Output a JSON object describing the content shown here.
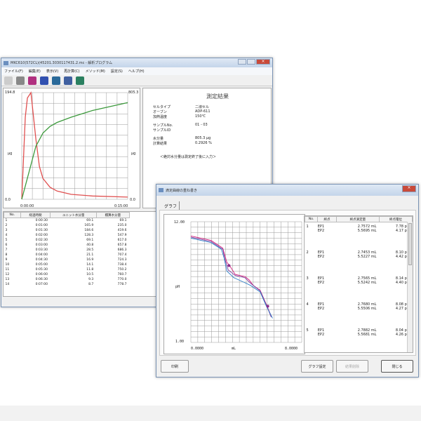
{
  "win1": {
    "title": "MKC610(572CL)(45201.3030117431.2.mc - 解析プログラム",
    "menu": [
      "ファイル(F)",
      "編集(E)",
      "表示(V)",
      "再計算(C)",
      "メソッド(M)",
      "設定(S)",
      "ヘルプ(H)"
    ],
    "chart": {
      "y_left_max": "194.8",
      "y_left_min": "0.0",
      "y_right_max": "805.3",
      "y_right_min": "0.0",
      "y_left_label": "μg",
      "y_right_label": "μg",
      "x_min": "0:00:00",
      "x_max": "0:15:00"
    },
    "result": {
      "title": "測定結果",
      "fields": [
        {
          "k": "セルタイプ",
          "v": "二液セル"
        },
        {
          "k": "オーブン",
          "v": "ADP-611"
        },
        {
          "k": "加熱温度",
          "v": "150℃"
        },
        {
          "k": "サンプルNo.",
          "v": "01 - 03"
        },
        {
          "k": "サンプルID",
          "v": ""
        },
        {
          "k": "水分量",
          "v": "805.3 μg"
        },
        {
          "k": "計算結果",
          "v": "0.2926 %"
        }
      ],
      "note": "＜絶対水分量は測定終了後に入力＞"
    },
    "table": {
      "headers": [
        "No.",
        "経過時間",
        "ユニット水分量",
        "積算水分量"
      ],
      "rows": [
        [
          "1",
          "0:00:30",
          "69.1",
          "69.1"
        ],
        [
          "2",
          "0:01:00",
          "165.9",
          "235.0"
        ],
        [
          "3",
          "0:01:30",
          "184.6",
          "419.6"
        ],
        [
          "4",
          "0:02:00",
          "128.3",
          "547.9"
        ],
        [
          "5",
          "0:02:30",
          "69.1",
          "617.0"
        ],
        [
          "6",
          "0:03:00",
          "40.8",
          "657.8"
        ],
        [
          "7",
          "0:03:30",
          "28.5",
          "686.3"
        ],
        [
          "8",
          "0:04:00",
          "21.1",
          "707.4"
        ],
        [
          "9",
          "0:04:30",
          "16.9",
          "724.3"
        ],
        [
          "10",
          "0:05:00",
          "14.1",
          "738.4"
        ],
        [
          "11",
          "0:05:30",
          "11.8",
          "750.2"
        ],
        [
          "12",
          "0:06:00",
          "10.5",
          "760.7"
        ],
        [
          "13",
          "0:06:30",
          "9.3",
          "770.0"
        ],
        [
          "14",
          "0:07:00",
          "8.7",
          "778.7"
        ]
      ]
    }
  },
  "win2": {
    "title": "滴定曲線の重ね書き",
    "tab": "グラフ",
    "chart": {
      "y_max": "12.00",
      "y_min": "1.00",
      "x_min": "0.0000",
      "x_max": "8.0000",
      "ylabel": "pH",
      "xlabel": "mL"
    },
    "table": {
      "headers": [
        "No.",
        "終点",
        "終点滴定量",
        "終点電位"
      ],
      "rows": [
        {
          "no": "1",
          "ep": [
            "EP1",
            "EP2"
          ],
          "vol": [
            "2.7572 mL",
            "5.5695 mL"
          ],
          "pot": [
            "7.78 pH",
            "4.17 pH"
          ]
        },
        {
          "no": "2",
          "ep": [
            "EP1",
            "EP2"
          ],
          "vol": [
            "2.7453 mL",
            "5.5227 mL"
          ],
          "pot": [
            "8.10 pH",
            "4.42 pH"
          ]
        },
        {
          "no": "3",
          "ep": [
            "EP1",
            "EP2"
          ],
          "vol": [
            "2.7565 mL",
            "5.5242 mL"
          ],
          "pot": [
            "8.14 pH",
            "4.40 pH"
          ]
        },
        {
          "no": "4",
          "ep": [
            "EP1",
            "EP2"
          ],
          "vol": [
            "2.7680 mL",
            "5.5506 mL"
          ],
          "pot": [
            "8.08 pH",
            "4.27 pH"
          ]
        },
        {
          "no": "5",
          "ep": [
            "EP1",
            "EP2"
          ],
          "vol": [
            "2.7882 mL",
            "5.5681 mL"
          ],
          "pot": [
            "8.04 pH",
            "4.26 pH"
          ]
        }
      ]
    },
    "buttons": {
      "print": "印刷",
      "graph_settings": "グラフ設定",
      "delete_result": "結果削除",
      "close": "閉じる"
    }
  },
  "chart_data": [
    {
      "type": "line",
      "xlim": [
        0,
        15
      ],
      "x_unit": "min",
      "series": [
        {
          "color": "#e05050",
          "axis": "left",
          "ylim": [
            0,
            194.8
          ],
          "points": [
            [
              0,
              0
            ],
            [
              0.5,
              150
            ],
            [
              0.8,
              185
            ],
            [
              1.3,
              194.8
            ],
            [
              2,
              110
            ],
            [
              2.5,
              60
            ],
            [
              3,
              38
            ],
            [
              4,
              22
            ],
            [
              5,
              15
            ],
            [
              7,
              9
            ],
            [
              10,
              6
            ],
            [
              15,
              4
            ]
          ]
        },
        {
          "color": "#3c9a3c",
          "axis": "right",
          "ylim": [
            0,
            805.3
          ],
          "points": [
            [
              0,
              0
            ],
            [
              1,
              200
            ],
            [
              2,
              400
            ],
            [
              3,
              500
            ],
            [
              4,
              550
            ],
            [
              5,
              580
            ],
            [
              7,
              620
            ],
            [
              10,
              670
            ],
            [
              15,
              730
            ]
          ]
        }
      ]
    },
    {
      "type": "line",
      "xlim": [
        0,
        8
      ],
      "ylim": [
        1,
        12
      ],
      "series": [
        {
          "color": "#d0207a",
          "points": [
            [
              0,
              10.7
            ],
            [
              1.45,
              10.3
            ],
            [
              2.3,
              9.6
            ],
            [
              2.6,
              8.3
            ],
            [
              2.8,
              8.0
            ],
            [
              3.2,
              7.2
            ],
            [
              3.9,
              7.0
            ],
            [
              4.2,
              6.7
            ],
            [
              4.5,
              6.2
            ],
            [
              5,
              5.75
            ],
            [
              5.45,
              4.45
            ],
            [
              5.8,
              3.4
            ]
          ]
        },
        {
          "color": "#7a3ca0",
          "points": [
            [
              0,
              10.6
            ],
            [
              1.45,
              10.2
            ],
            [
              2.3,
              9.5
            ],
            [
              2.45,
              8.6
            ],
            [
              2.7,
              7.6
            ],
            [
              3.2,
              7.1
            ],
            [
              3.9,
              6.9
            ],
            [
              4.3,
              6.4
            ],
            [
              4.6,
              6.1
            ],
            [
              5,
              5.7
            ],
            [
              5.45,
              4.4
            ],
            [
              5.8,
              3.3
            ]
          ]
        },
        {
          "color": "#3080c8",
          "points": [
            [
              0,
              10.5
            ],
            [
              1.45,
              10.1
            ],
            [
              2.2,
              9.5
            ],
            [
              2.4,
              8.7
            ],
            [
              2.6,
              7.5
            ],
            [
              3.1,
              6.9
            ],
            [
              3.8,
              6.5
            ],
            [
              4.3,
              6.2
            ],
            [
              5,
              5.6
            ],
            [
              5.45,
              4.3
            ],
            [
              5.9,
              3.2
            ]
          ]
        }
      ],
      "markers": [
        [
          2.75,
          8.0
        ],
        [
          5.55,
          4.3
        ]
      ]
    }
  ]
}
